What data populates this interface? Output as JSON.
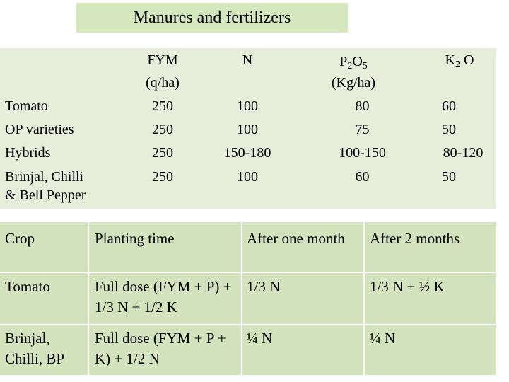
{
  "title": "Manures and fertilizers",
  "dose_table": {
    "headers": {
      "fym": "FYM",
      "fym_unit": "(q/ha)",
      "n": "N",
      "p_main": "P",
      "p_sub1": "2",
      "p_mid": "O",
      "p_sub2": "5",
      "p_unit": "(Kg/ha)",
      "k_main": "K",
      "k_sub": "2",
      "k_end": " O"
    },
    "rows": [
      {
        "crop": "Tomato",
        "fym": "250",
        "n": "100",
        "p": "80",
        "k": "60"
      },
      {
        "crop": "OP varieties",
        "fym": "250",
        "n": "100",
        "p": "75",
        "k": "50"
      },
      {
        "crop": "Hybrids",
        "fym": "250",
        "n": "150-180",
        "p": "100-150",
        "k": "80-120"
      },
      {
        "crop": "Brinjal, Chilli",
        "crop_line2": "& Bell Pepper",
        "fym": "250",
        "n": "100",
        "p": "60",
        "k": "50"
      }
    ]
  },
  "schedule_table": {
    "headers": [
      "Crop",
      "Planting time",
      "After one month",
      "After 2 months"
    ],
    "rows": [
      [
        "Tomato",
        "Full dose (FYM + P) + 1/3 N + 1/2 K",
        "1/3 N",
        "1/3 N + ½ K"
      ],
      [
        "Brinjal, Chilli, BP",
        "Full dose (FYM + P + K) + 1/2 N",
        "¼ N",
        "¼ N"
      ]
    ]
  }
}
